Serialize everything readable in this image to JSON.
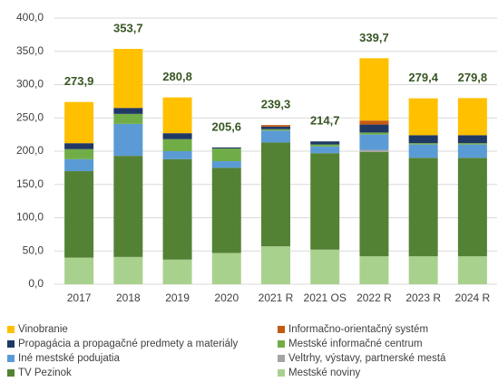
{
  "chart_data": {
    "type": "stacked_bar",
    "categories": [
      "2017",
      "2018",
      "2019",
      "2020",
      "2021 R",
      "2021 OS",
      "2022 R",
      "2023 R",
      "2024 R"
    ],
    "series": [
      {
        "name": "Mestské noviny",
        "color": "#a9d18e",
        "values": [
          40,
          41,
          37,
          47,
          57,
          52,
          42,
          42,
          42
        ]
      },
      {
        "name": "TV Pezinok",
        "color": "#548235",
        "values": [
          130,
          152,
          151,
          128,
          156,
          145,
          157,
          148,
          148
        ]
      },
      {
        "name": "Veltrhy, výstavy, partnerské mestá",
        "color": "#a5a5a5",
        "values": [
          0,
          0,
          0,
          0,
          0,
          0,
          3,
          0,
          0
        ]
      },
      {
        "name": "Iné mestské podujatia",
        "color": "#5b9bd5",
        "values": [
          18,
          48,
          12,
          10,
          18,
          10,
          23,
          20,
          20
        ]
      },
      {
        "name": "Mestské informačné centrum",
        "color": "#70ad47",
        "values": [
          15,
          15,
          18,
          19,
          2,
          3,
          3,
          2,
          2
        ]
      },
      {
        "name": "Propagácia a propagačné predmety a materiály",
        "color": "#203864",
        "values": [
          9,
          9,
          9,
          1.6,
          4,
          4.7,
          12,
          12,
          12
        ]
      },
      {
        "name": "Informačno-orientačný systém",
        "color": "#c55a11",
        "values": [
          0,
          0,
          0,
          0,
          2.3,
          0,
          6,
          0,
          0
        ]
      },
      {
        "name": "Vinobranie",
        "color": "#ffc000",
        "values": [
          61.9,
          88.7,
          53.8,
          0,
          0,
          0,
          93.7,
          55.4,
          55.8
        ]
      }
    ],
    "totals": [
      273.9,
      353.7,
      280.8,
      205.6,
      239.3,
      214.7,
      339.7,
      279.4,
      279.8
    ],
    "total_labels": [
      "273,9",
      "353,7",
      "280,8",
      "205,6",
      "239,3",
      "214,7",
      "339,7",
      "279,4",
      "279,8"
    ],
    "ylim": [
      0,
      400
    ],
    "yticks": [
      {
        "value": 0,
        "label": "0,0"
      },
      {
        "value": 50,
        "label": "50,0"
      },
      {
        "value": 100,
        "label": "100,0"
      },
      {
        "value": 150,
        "label": "150,0"
      },
      {
        "value": 200,
        "label": "200,0"
      },
      {
        "value": 250,
        "label": "250,0"
      },
      {
        "value": 300,
        "label": "300,0"
      },
      {
        "value": 350,
        "label": "350,0"
      },
      {
        "value": 400,
        "label": "400,0"
      }
    ],
    "grid": true
  }
}
